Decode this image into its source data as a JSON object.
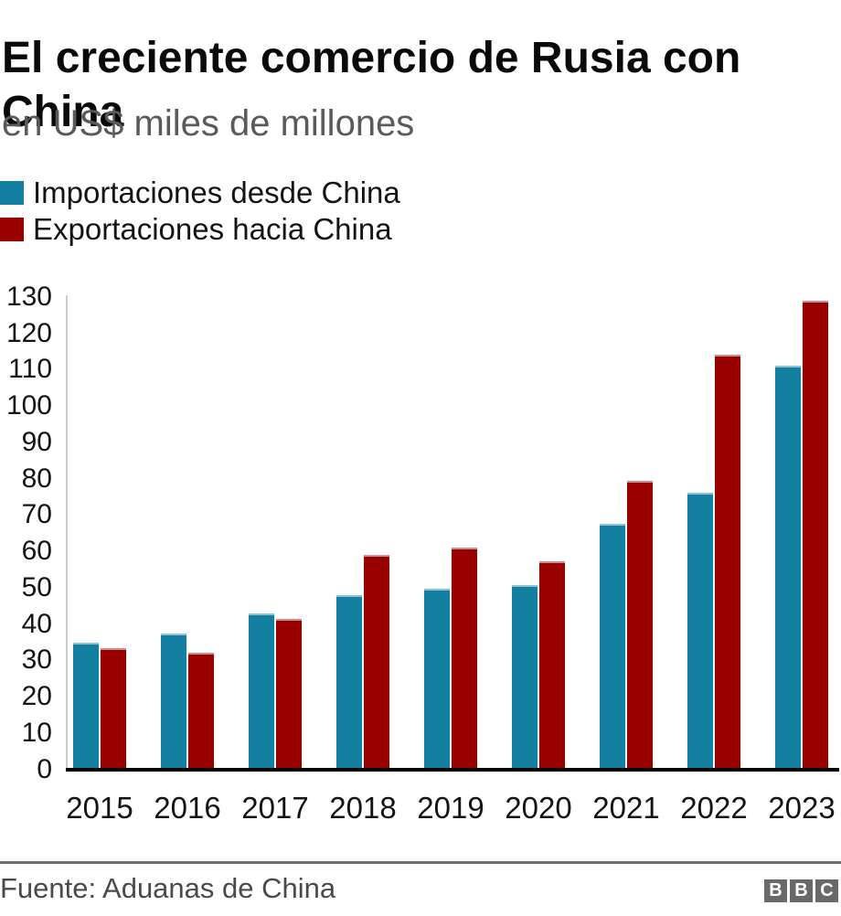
{
  "title": "El creciente comercio de Rusia con China",
  "subtitle": "en US$ miles de millones",
  "legend": [
    {
      "label": "Importaciones desde China",
      "color": "#1380A1"
    },
    {
      "label": "Exportaciones hacia China",
      "color": "#990000"
    }
  ],
  "source": "Fuente: Aduanas de China",
  "logo": {
    "letters": [
      "B",
      "B",
      "C"
    ]
  },
  "colors": {
    "imports": "#1380A1",
    "exports": "#990000",
    "axis_line": "#cccccc",
    "baseline": "#000000",
    "divider": "#6e6e6e",
    "subtitle_text": "#5a5a5a",
    "source_text": "#4a4a4a",
    "logo_block": "#696969"
  },
  "chart_data": {
    "type": "bar",
    "title": "El creciente comercio de Rusia con China",
    "subtitle": "en US$ miles de millones",
    "categories": [
      "2015",
      "2016",
      "2017",
      "2018",
      "2019",
      "2020",
      "2021",
      "2022",
      "2023"
    ],
    "series": [
      {
        "name": "Importaciones desde China",
        "color": "#1380A1",
        "values": [
          34.9,
          37.3,
          42.9,
          48.0,
          49.7,
          50.6,
          67.6,
          76.1,
          111.0
        ]
      },
      {
        "name": "Exportaciones hacia China",
        "color": "#990000",
        "values": [
          33.3,
          32.2,
          41.4,
          59.1,
          61.0,
          57.2,
          79.3,
          114.1,
          129.1
        ]
      }
    ],
    "xlabel": "",
    "ylabel": "",
    "ylim": [
      0,
      130
    ],
    "ytick_step": 10,
    "grid": false,
    "legend_position": "top-left"
  }
}
